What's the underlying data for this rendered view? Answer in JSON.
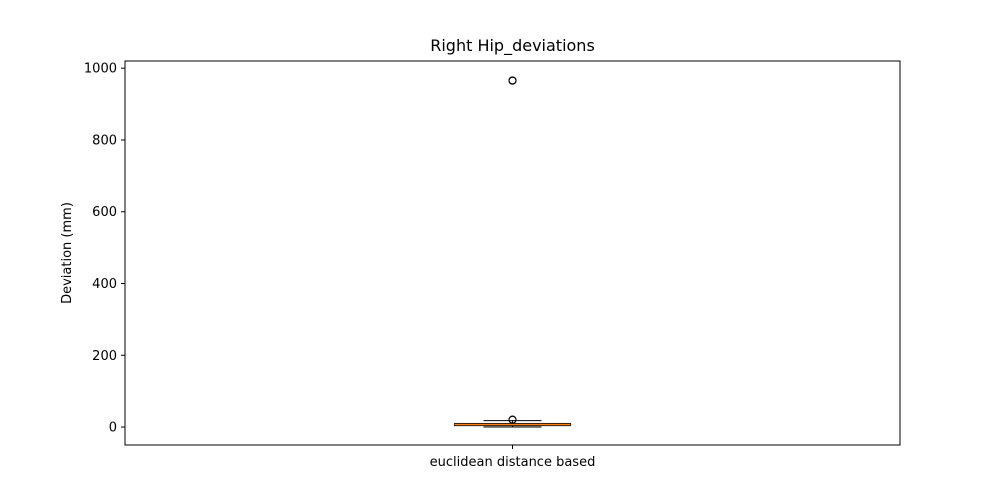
{
  "chart_data": {
    "type": "boxplot",
    "title": "Right Hip_deviations",
    "xlabel": "",
    "ylabel": "Deviation (mm)",
    "ylim": [
      -50,
      1020
    ],
    "yticks": [
      0,
      200,
      400,
      600,
      800,
      1000
    ],
    "categories": [
      "euclidean distance based"
    ],
    "grid": false,
    "boxes": [
      {
        "category": "euclidean distance based",
        "whisker_low": 0,
        "q1": 4,
        "median": 7,
        "q3": 10,
        "whisker_high": 18,
        "outliers": [
          20,
          21,
          965,
          966
        ]
      }
    ],
    "colors": {
      "box": "#000000",
      "median": "#ff7f0e",
      "outlier": "#000000"
    }
  }
}
